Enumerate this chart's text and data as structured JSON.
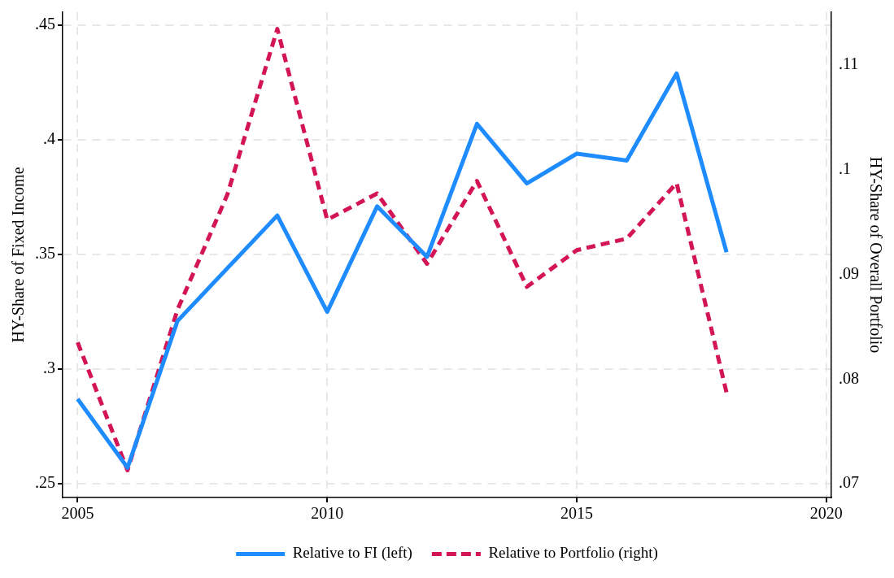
{
  "chart_data": {
    "type": "line",
    "ylabel": "HY-Share of Fixed Income",
    "y2label": "HY-Share of Overall Portfolio",
    "xlim": [
      2004.7,
      2020.1
    ],
    "xticks": [
      2005,
      2010,
      2015,
      2020
    ],
    "ylim": [
      0.244,
      0.4557
    ],
    "yticks": [
      {
        "value": 0.25,
        "label": ".25"
      },
      {
        "value": 0.3,
        "label": ".3"
      },
      {
        "value": 0.35,
        "label": ".35"
      },
      {
        "value": 0.4,
        "label": ".4"
      },
      {
        "value": 0.45,
        "label": ".45"
      }
    ],
    "y2lim": [
      0.0687,
      0.115
    ],
    "y2ticks": [
      {
        "value": 0.07,
        "label": ".07"
      },
      {
        "value": 0.08,
        "label": ".08"
      },
      {
        "value": 0.09,
        "label": ".09"
      },
      {
        "value": 0.1,
        "label": ".1"
      },
      {
        "value": 0.11,
        "label": ".11"
      }
    ],
    "grid": true,
    "legend": "bottom",
    "marker": "none",
    "series": [
      {
        "name": "Relative to FI (left)",
        "color": "#1e8cff",
        "line_style": "solid",
        "x": [
          2005,
          2006,
          2007,
          2009,
          2010,
          2011,
          2012,
          2013,
          2014,
          2015,
          2016,
          2017,
          2018
        ],
        "values": [
          0.287,
          0.257,
          0.321,
          0.367,
          0.325,
          0.371,
          0.349,
          0.407,
          0.381,
          0.394,
          0.391,
          0.429,
          0.351
        ]
      },
      {
        "name": "Relative to Portfolio (right)",
        "color": "#d31558",
        "line_style": "dashed",
        "axis": "y2",
        "x": [
          2005,
          2006,
          2007,
          2008,
          2009,
          2010,
          2011,
          2012,
          2013,
          2014,
          2015,
          2016,
          2017,
          2018
        ],
        "values": [
          0.0835,
          0.0713,
          0.0866,
          0.0976,
          0.1134,
          0.0952,
          0.0977,
          0.091,
          0.0989,
          0.0888,
          0.0923,
          0.0934,
          0.0987,
          0.0787
        ]
      }
    ]
  }
}
